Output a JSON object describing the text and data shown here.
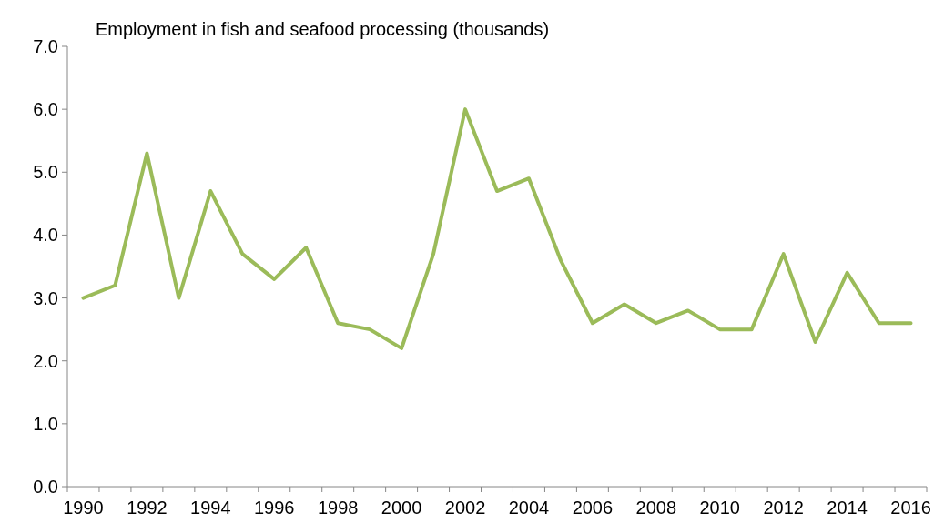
{
  "chart_data": {
    "type": "line",
    "title": "Employment in fish and seafood processing (thousands)",
    "categories": [
      "1990",
      null,
      "1992",
      null,
      "1994",
      null,
      "1996",
      null,
      "1998",
      null,
      "2000",
      null,
      "2002",
      null,
      "2004",
      null,
      "2006",
      null,
      "2008",
      null,
      "2010",
      null,
      "2012",
      null,
      "2014",
      null,
      "2016"
    ],
    "series": [
      {
        "color": "#9bbb59",
        "values": [
          3.0,
          3.2,
          5.3,
          3.0,
          4.7,
          3.7,
          3.3,
          3.8,
          2.6,
          2.5,
          2.2,
          3.7,
          6.0,
          4.7,
          4.9,
          3.6,
          2.6,
          2.9,
          2.6,
          2.8,
          2.5,
          2.5,
          3.7,
          2.3,
          3.4,
          2.6,
          2.6
        ]
      }
    ],
    "ylim": [
      0,
      7
    ],
    "yticks": [
      {
        "value": 0,
        "label": "0.0"
      },
      {
        "value": 1,
        "label": "1.0"
      },
      {
        "value": 2,
        "label": "2.0"
      },
      {
        "value": 3,
        "label": "3.0"
      },
      {
        "value": 4,
        "label": "4.0"
      },
      {
        "value": 5,
        "label": "5.0"
      },
      {
        "value": 6,
        "label": "6.0"
      },
      {
        "value": 7,
        "label": "7.0"
      }
    ],
    "grid": false,
    "marker": "none",
    "line_style": "solid"
  }
}
